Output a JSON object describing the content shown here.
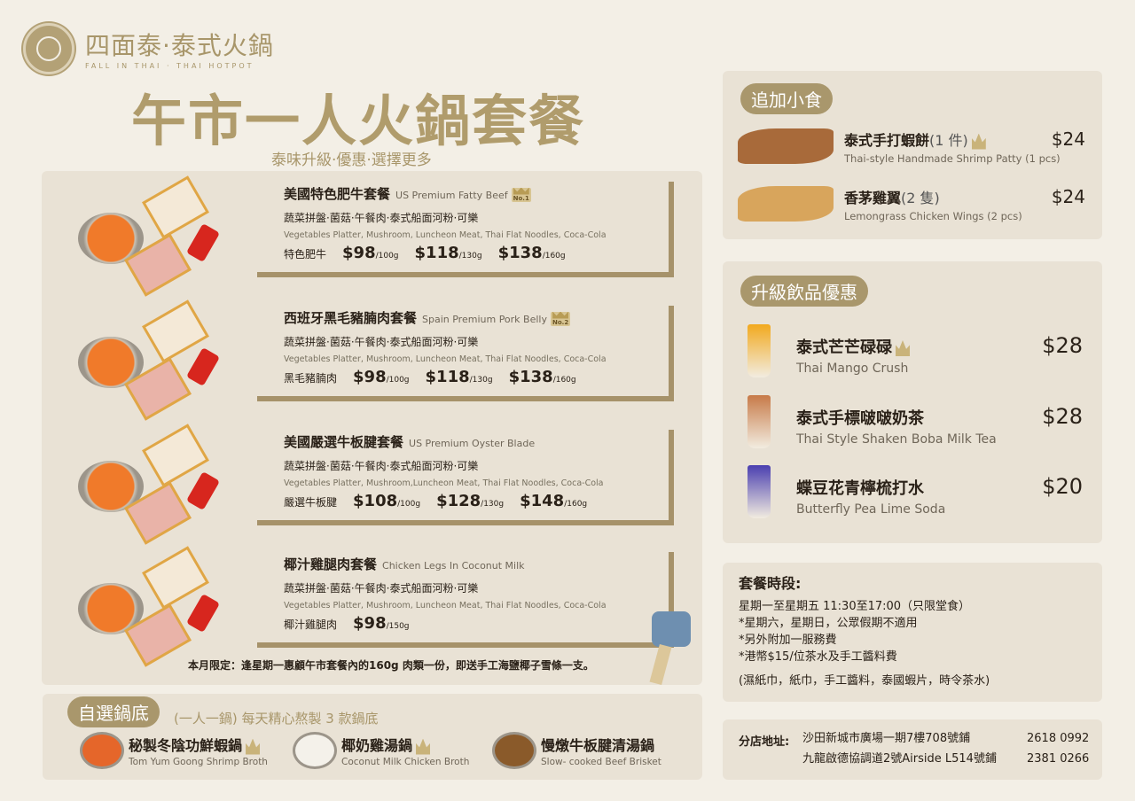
{
  "header": {
    "brand": "四面泰·泰式火鍋",
    "brand_en": "FALL IN THAI · THAI HOTPOT",
    "title": "午市一人火鍋套餐",
    "subtitle": "泰味升級·優惠·選擇更多"
  },
  "sets": [
    {
      "name": "美國特色肥牛套餐",
      "en": "US Premium Fatty Beef",
      "badge": "No.1",
      "items_cn": "蔬菜拼盤·菌菇·午餐肉·泰式船面河粉·可樂",
      "items_en": "Vegetables Platter, Mushroom, Luncheon Meat, Thai Flat Noodles, Coca-Cola",
      "meat": "特色肥牛",
      "prices": [
        {
          "p": "$98",
          "u": "/100g"
        },
        {
          "p": "$118",
          "u": "/130g"
        },
        {
          "p": "$138",
          "u": "/160g"
        }
      ]
    },
    {
      "name": "西班牙黑毛豬腩肉套餐",
      "en": "Spain Premium Pork Belly",
      "badge": "No.2",
      "items_cn": "蔬菜拼盤·菌菇·午餐肉·泰式船面河粉·可樂",
      "items_en": "Vegetables Platter, Mushroom, Luncheon Meat, Thai Flat Noodles, Coca-Cola",
      "meat": "黑毛豬腩肉",
      "prices": [
        {
          "p": "$98",
          "u": "/100g"
        },
        {
          "p": "$118",
          "u": "/130g"
        },
        {
          "p": "$138",
          "u": "/160g"
        }
      ]
    },
    {
      "name": "美國嚴選牛板腱套餐",
      "en": "US Premium Oyster Blade",
      "items_cn": "蔬菜拼盤·菌菇·午餐肉·泰式船面河粉·可樂",
      "items_en": "Vegetables Platter, Mushroom,Luncheon Meat, Thai Flat Noodles, Coca-Cola",
      "meat": "嚴選牛板腱",
      "prices": [
        {
          "p": "$108",
          "u": "/100g"
        },
        {
          "p": "$128",
          "u": "/130g"
        },
        {
          "p": "$148",
          "u": "/160g"
        }
      ]
    },
    {
      "name": "椰汁雞腿肉套餐",
      "en": "Chicken Legs In Coconut Milk",
      "items_cn": "蔬菜拼盤·菌菇·午餐肉·泰式船面河粉·可樂",
      "items_en": "Vegetables Platter, Mushroom, Luncheon Meat, Thai Flat Noodles, Coca-Cola",
      "meat": "椰汁雞腿肉",
      "prices": [
        {
          "p": "$98",
          "u": "/150g"
        }
      ]
    }
  ],
  "promo": "本月限定：逢星期一惠顧午市套餐內的160g 肉類一份，即送手工海鹽椰子雪條一支。",
  "broth": {
    "label": "自選鍋底",
    "note": "(一人一鍋) 每天精心熬製 3 款鍋底",
    "items": [
      {
        "cn": "秘製冬陰功鮮蝦鍋",
        "en": "Tom Yum Goong Shrimp Broth",
        "color": "#e5662a"
      },
      {
        "cn": "椰奶雞湯鍋",
        "en": "Coconut Milk Chicken Broth",
        "color": "#f4f1ea"
      },
      {
        "cn": "慢燉牛板腱清湯鍋",
        "en": "Slow- cooked Beef Brisket",
        "color": "#8a5a2a"
      }
    ]
  },
  "snacks": {
    "label": "追加小食",
    "items": [
      {
        "cn": "泰式手打蝦餅",
        "qty": "(1 件)",
        "en": "Thai-style Handmade Shrimp Patty (1 pcs)",
        "price": "$24"
      },
      {
        "cn": "香茅雞翼",
        "qty": "(2 隻)",
        "en": "Lemongrass Chicken Wings (2 pcs)",
        "price": "$24"
      }
    ]
  },
  "drinks": {
    "label": "升級飲品優惠",
    "items": [
      {
        "cn": "泰式芒芒碌碌",
        "en": "Thai Mango Crush",
        "price": "$28",
        "color": "#f2a91e"
      },
      {
        "cn": "泰式手標啵啵奶茶",
        "en": "Thai Style Shaken Boba Milk Tea",
        "price": "$28",
        "color": "#c77a48"
      },
      {
        "cn": "蝶豆花青檸梳打水",
        "en": "Butterfly Pea Lime Soda",
        "price": "$20",
        "color": "#4a3fb0"
      }
    ]
  },
  "hours": {
    "title": "套餐時段:",
    "lines": [
      "星期一至星期五 11:30至17:00（只限堂食）",
      "*星期六，星期日，公眾假期不適用",
      "*另外附加一服務費",
      "*港幣$15/位茶水及手工醬料費"
    ],
    "note": "(濕紙巾，紙巾，手工醬料，泰國蝦片，時令茶水)"
  },
  "address": {
    "label": "分店地址:",
    "branches": [
      {
        "addr": "沙田新城市廣場一期7樓708號鋪",
        "phone": "2618 0992"
      },
      {
        "addr": "九龍啟德協調道2號Airside L514號鋪",
        "phone": "2381 0266"
      }
    ]
  },
  "colors": {
    "gold": "#a9976c",
    "panel": "#e9e2d5",
    "background": "#f3efe6"
  }
}
